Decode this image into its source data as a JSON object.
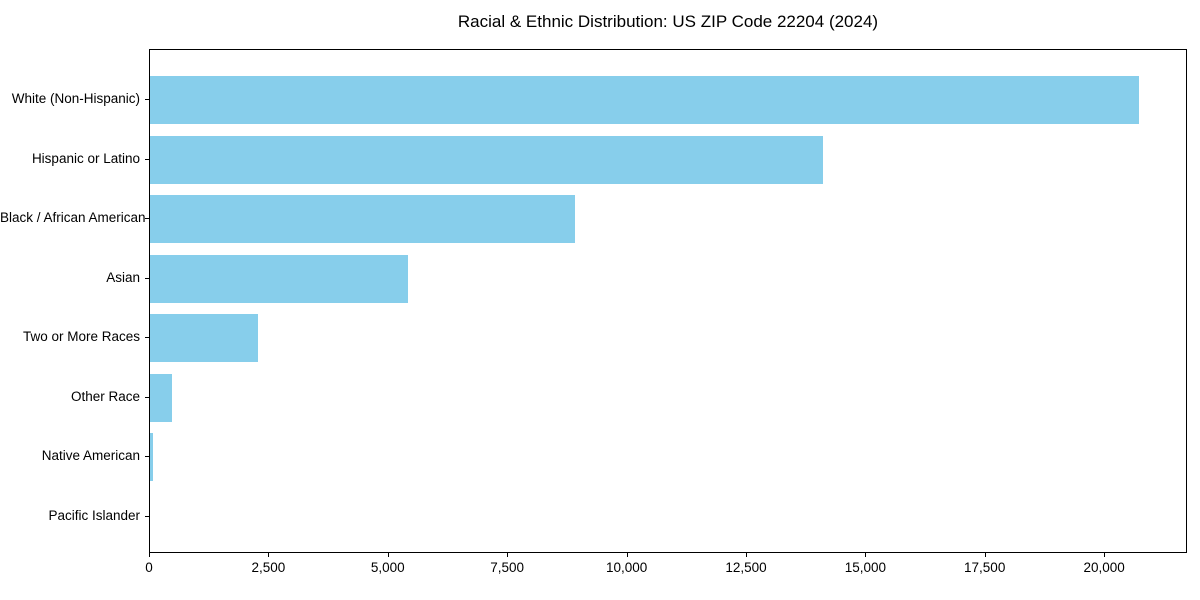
{
  "chart_data": {
    "type": "bar",
    "orientation": "horizontal",
    "title": "Racial & Ethnic Distribution: US ZIP Code 22204 (2024)",
    "categories": [
      "White (Non-Hispanic)",
      "Hispanic or Latino",
      "Black / African American",
      "Asian",
      "Two or More Races",
      "Other Race",
      "Native American",
      "Pacific Islander"
    ],
    "values": [
      20700,
      14100,
      8900,
      5400,
      2250,
      450,
      65,
      0
    ],
    "xlabel": "",
    "ylabel": "",
    "xlim": [
      0,
      21735
    ],
    "xticks": [
      0,
      2500,
      5000,
      7500,
      10000,
      12500,
      15000,
      17500,
      20000
    ],
    "xtick_labels": [
      "0",
      "2,500",
      "5,000",
      "7,500",
      "10,000",
      "12,500",
      "15,000",
      "17,500",
      "20,000"
    ],
    "bar_color": "#87CEEB",
    "spine_color": "#000000",
    "text_color": "#000000",
    "grid": false,
    "legend": null
  }
}
